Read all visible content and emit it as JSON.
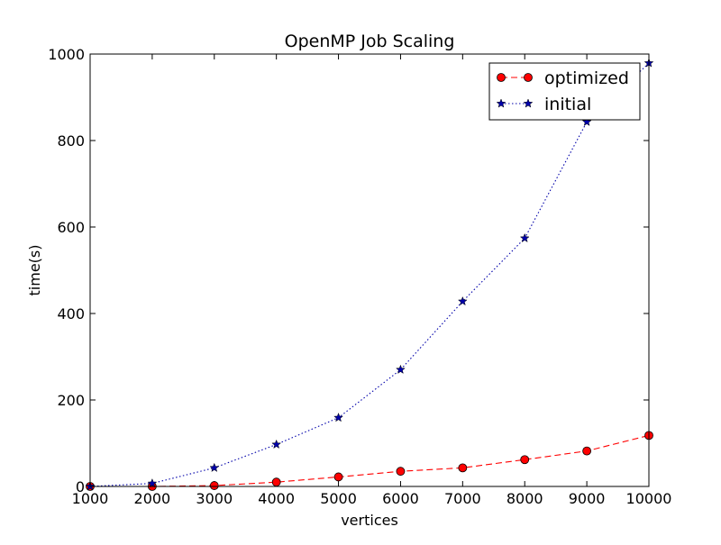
{
  "chart_data": {
    "type": "line",
    "title": "OpenMP Job Scaling",
    "xlabel": "vertices",
    "ylabel": "time(s)",
    "xlim": [
      1000,
      10000
    ],
    "ylim": [
      0,
      1000
    ],
    "x_ticks": [
      1000,
      2000,
      3000,
      4000,
      5000,
      6000,
      7000,
      8000,
      9000,
      10000
    ],
    "y_ticks": [
      0,
      200,
      400,
      600,
      800,
      1000
    ],
    "grid": false,
    "legend_position": "top-right",
    "x": [
      1000,
      2000,
      3000,
      4000,
      5000,
      6000,
      7000,
      8000,
      9000,
      10000
    ],
    "series": [
      {
        "name": "optimized",
        "color": "#ff0000",
        "line_style": "dashed",
        "marker": "circle",
        "values": [
          0,
          0,
          2,
          10,
          22,
          35,
          43,
          62,
          82,
          118
        ]
      },
      {
        "name": "initial",
        "color": "#0000aa",
        "line_style": "dotted",
        "marker": "star",
        "values": [
          0,
          7,
          43,
          97,
          159,
          270,
          428,
          574,
          843,
          979
        ]
      }
    ]
  }
}
